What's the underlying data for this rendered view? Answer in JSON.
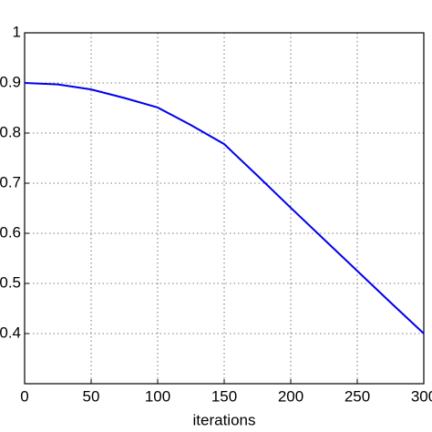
{
  "chart_data": {
    "type": "line",
    "xlabel": "iterations",
    "x": [
      0,
      25,
      50,
      75,
      100,
      125,
      150,
      175,
      200,
      225,
      250,
      275,
      300
    ],
    "series": [
      {
        "color": "#0000ee",
        "values": [
          0.9,
          0.897,
          0.887,
          0.87,
          0.851,
          0.816,
          0.778,
          0.715,
          0.651,
          0.588,
          0.525,
          0.462,
          0.4
        ]
      }
    ],
    "xlim": [
      0,
      300
    ],
    "xticks": [
      0,
      50,
      100,
      150,
      200,
      250,
      300
    ],
    "ylim": [
      0.3,
      1
    ],
    "yticks": [
      0.4,
      0.5,
      0.6,
      0.7,
      0.8,
      0.9,
      1
    ],
    "grid": true
  }
}
